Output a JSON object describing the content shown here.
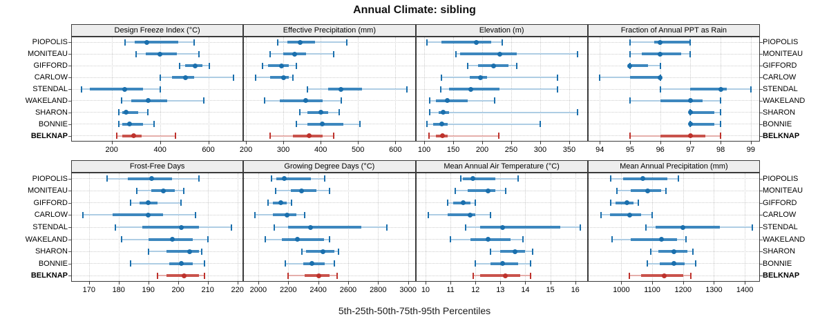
{
  "title": "Annual Climate: sibling",
  "caption": "5th-25th-50th-75th-95th Percentiles",
  "stations": [
    "PIOPOLIS",
    "MONITEAU",
    "GIFFORD",
    "CARLOW",
    "STENDAL",
    "WAKELAND",
    "SHARON",
    "BONNIE",
    "BELKNAP"
  ],
  "highlight_station": "BELKNAP",
  "percentile_labels": [
    "5th",
    "25th",
    "50th",
    "75th",
    "95th"
  ],
  "colors": {
    "series_main": "#1a6fad",
    "series_mid": "#3d87be",
    "series_light": "#aecde4",
    "highlight_main": "#be322c",
    "highlight_mid": "#c9534c",
    "highlight_light": "#e5afab",
    "grid": "#cdcdcd",
    "panel_border": "#3a3a3a",
    "strip_bg": "#ededed"
  },
  "chart_data": {
    "type": "dotplot-percentile-trellis",
    "layout": {
      "rows": 2,
      "cols": 4,
      "legend": "none",
      "grid": "dotted"
    },
    "note": "Each row shows 5th-25th-50th-75th-95th percentiles per station; dot = median",
    "panels": [
      {
        "title": "Design Freeze Index (°C)",
        "xlim": [
          32,
          745
        ],
        "ticks": [
          200,
          400,
          600
        ],
        "series": {
          "PIOPOLIS": [
            255,
            295,
            345,
            475,
            540
          ],
          "MONITEAU": [
            300,
            340,
            400,
            470,
            560
          ],
          "GIFFORD": [
            480,
            505,
            545,
            575,
            605
          ],
          "CARLOW": [
            400,
            450,
            505,
            540,
            705
          ],
          "STENDAL": [
            75,
            110,
            255,
            330,
            400
          ],
          "WAKELAND": [
            240,
            280,
            350,
            430,
            580
          ],
          "SHARON": [
            230,
            245,
            260,
            310,
            350
          ],
          "BONNIE": [
            230,
            245,
            275,
            330,
            375
          ],
          "BELKNAP": [
            220,
            245,
            290,
            325,
            465
          ]
        }
      },
      {
        "title": "Effective Precipitation (mm)",
        "xlim": [
          193,
          654
        ],
        "ticks": [
          200,
          300,
          400,
          500,
          600
        ],
        "series": {
          "PIOPOLIS": [
            285,
            310,
            345,
            385,
            470
          ],
          "MONITEAU": [
            265,
            300,
            330,
            360,
            435
          ],
          "GIFFORD": [
            245,
            260,
            295,
            315,
            335
          ],
          "CARLOW": [
            225,
            265,
            300,
            315,
            325
          ],
          "STENDAL": [
            365,
            420,
            455,
            510,
            630
          ],
          "WAKELAND": [
            250,
            290,
            360,
            405,
            455
          ],
          "SHARON": [
            345,
            365,
            400,
            420,
            450
          ],
          "BONNIE": [
            335,
            365,
            405,
            460,
            505
          ],
          "BELKNAP": [
            265,
            325,
            370,
            405,
            435
          ]
        }
      },
      {
        "title": "Elevation (m)",
        "xlim": [
          85,
          382
        ],
        "ticks": [
          100,
          150,
          200,
          250,
          300,
          350
        ],
        "series": {
          "PIOPOLIS": [
            105,
            130,
            190,
            215,
            235
          ],
          "MONITEAU": [
            155,
            162,
            230,
            260,
            365
          ],
          "GIFFORD": [
            175,
            193,
            220,
            245,
            260
          ],
          "CARLOW": [
            130,
            178,
            197,
            208,
            330
          ],
          "STENDAL": [
            128,
            143,
            180,
            230,
            330
          ],
          "WAKELAND": [
            110,
            120,
            140,
            175,
            222
          ],
          "SHARON": [
            110,
            125,
            133,
            143,
            365
          ],
          "BONNIE": [
            105,
            115,
            130,
            140,
            300
          ],
          "BELKNAP": [
            108,
            120,
            131,
            141,
            228
          ]
        }
      },
      {
        "title": "Fraction of Annual PPT as Rain",
        "xlim": [
          93.6,
          99.3
        ],
        "ticks": [
          94,
          95,
          96,
          97,
          98,
          99
        ],
        "series": {
          "PIOPOLIS": [
            95,
            95.8,
            96,
            97,
            97
          ],
          "MONITEAU": [
            95,
            95.4,
            96,
            96.7,
            97
          ],
          "GIFFORD": [
            95,
            95,
            95,
            95.6,
            96
          ],
          "CARLOW": [
            94,
            95,
            96,
            96,
            96
          ],
          "STENDAL": [
            96,
            97,
            98,
            98.2,
            99
          ],
          "WAKELAND": [
            95,
            96,
            97,
            97.4,
            98
          ],
          "SHARON": [
            97,
            97,
            97,
            97.8,
            98
          ],
          "BONNIE": [
            97,
            97,
            97,
            97.8,
            98
          ],
          "BELKNAP": [
            95,
            96,
            97,
            97.5,
            98
          ]
        }
      },
      {
        "title": "Frost-Free Days",
        "xlim": [
          164,
          222
        ],
        "ticks": [
          170,
          180,
          190,
          200,
          210,
          220
        ],
        "series": {
          "PIOPOLIS": [
            176,
            183,
            191,
            198,
            207
          ],
          "MONITEAU": [
            186,
            191,
            195,
            199,
            202
          ],
          "GIFFORD": [
            184,
            187,
            190,
            193,
            201
          ],
          "CARLOW": [
            168,
            178,
            190,
            195,
            206
          ],
          "STENDAL": [
            179,
            188,
            201,
            207,
            218
          ],
          "WAKELAND": [
            181,
            190,
            198,
            205,
            210
          ],
          "SHARON": [
            190,
            196,
            204,
            207,
            208
          ],
          "BONNIE": [
            184,
            197,
            201,
            205,
            209
          ],
          "BELKNAP": [
            193,
            196,
            202,
            207,
            209
          ]
        }
      },
      {
        "title": "Growing Degree Days (°C)",
        "xlim": [
          1900,
          3050
        ],
        "ticks": [
          2000,
          2200,
          2400,
          2600,
          2800,
          3000
        ],
        "series": {
          "PIOPOLIS": [
            2090,
            2120,
            2175,
            2350,
            2445
          ],
          "MONITEAU": [
            2115,
            2215,
            2290,
            2390,
            2475
          ],
          "GIFFORD": [
            2065,
            2095,
            2150,
            2190,
            2220
          ],
          "CARLOW": [
            1975,
            2095,
            2190,
            2255,
            2310
          ],
          "STENDAL": [
            2105,
            2200,
            2350,
            2690,
            2860
          ],
          "WAKELAND": [
            2045,
            2155,
            2260,
            2440,
            2475
          ],
          "SHARON": [
            2290,
            2320,
            2430,
            2510,
            2535
          ],
          "BONNIE": [
            2180,
            2300,
            2360,
            2445,
            2510
          ],
          "BELKNAP": [
            2200,
            2310,
            2405,
            2475,
            2525
          ]
        }
      },
      {
        "title": "Mean Annual Air Temperature (°C)",
        "xlim": [
          9.6,
          16.5
        ],
        "ticks": [
          10,
          11,
          12,
          13,
          14,
          15,
          16
        ],
        "series": {
          "PIOPOLIS": [
            11.4,
            11.5,
            11.9,
            12.8,
            13.7
          ],
          "MONITEAU": [
            11.2,
            11.7,
            12.5,
            12.8,
            13.2
          ],
          "GIFFORD": [
            10.9,
            11.1,
            11.5,
            11.8,
            12.0
          ],
          "CARLOW": [
            10.1,
            10.9,
            11.8,
            12.0,
            12.6
          ],
          "STENDAL": [
            11.6,
            12.2,
            13.1,
            15.4,
            16.2
          ],
          "WAKELAND": [
            11.0,
            11.8,
            12.5,
            13.4,
            13.9
          ],
          "SHARON": [
            12.6,
            13.0,
            13.6,
            14.0,
            14.3
          ],
          "BONNIE": [
            12.0,
            12.6,
            13.1,
            13.7,
            14.2
          ],
          "BELKNAP": [
            11.9,
            12.2,
            13.2,
            13.8,
            14.2
          ]
        }
      },
      {
        "title": "Mean Annual Precipitation (mm)",
        "xlim": [
          891,
          1449
        ],
        "ticks": [
          1000,
          1100,
          1200,
          1300,
          1400
        ],
        "series": {
          "PIOPOLIS": [
            965,
            1005,
            1070,
            1150,
            1185
          ],
          "MONITEAU": [
            985,
            1030,
            1085,
            1130,
            1145
          ],
          "GIFFORD": [
            965,
            980,
            1017,
            1040,
            1056
          ],
          "CARLOW": [
            933,
            963,
            1026,
            1063,
            1100
          ],
          "STENDAL": [
            1080,
            1110,
            1200,
            1320,
            1425
          ],
          "WAKELAND": [
            970,
            1030,
            1130,
            1180,
            1210
          ],
          "SHARON": [
            1095,
            1120,
            1170,
            1215,
            1232
          ],
          "BONNIE": [
            1085,
            1125,
            1170,
            1205,
            1240
          ],
          "BELKNAP": [
            1025,
            1065,
            1140,
            1200,
            1225
          ]
        }
      }
    ]
  }
}
